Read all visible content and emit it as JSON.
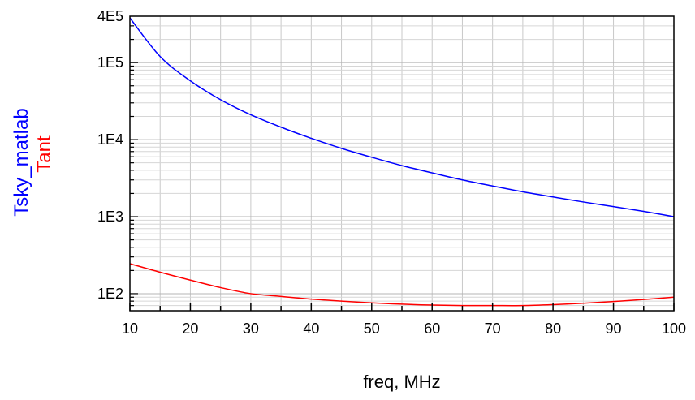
{
  "chart_data": {
    "type": "line",
    "xlabel": "freq, MHz",
    "xlim": [
      10,
      100
    ],
    "x_scale": "linear",
    "y_scale": "log",
    "ylim": [
      60,
      400000
    ],
    "grid": true,
    "x_ticks": [
      10,
      20,
      30,
      40,
      50,
      60,
      70,
      80,
      90,
      100
    ],
    "x_tick_labels": [
      "10",
      "20",
      "30",
      "40",
      "50",
      "60",
      "70",
      "80",
      "90",
      "100"
    ],
    "y_ticks": [
      100,
      1000,
      10000,
      100000,
      400000
    ],
    "y_tick_labels": [
      "1E2",
      "1E3",
      "1E4",
      "1E5",
      "4E5"
    ],
    "x": [
      10,
      15,
      20,
      25,
      30,
      35,
      40,
      45,
      50,
      55,
      60,
      65,
      70,
      75,
      80,
      85,
      90,
      95,
      100
    ],
    "series": [
      {
        "name": "Tsky_matlab",
        "color": "#0000ff",
        "values": [
          380000,
          120000,
          58000,
          33000,
          21000,
          14500,
          10400,
          7700,
          5900,
          4600,
          3700,
          3000,
          2500,
          2100,
          1800,
          1550,
          1350,
          1170,
          1000
        ]
      },
      {
        "name": "Tant",
        "color": "#ff0000",
        "values": [
          245,
          190,
          150,
          120,
          100,
          92,
          85,
          80,
          76,
          73,
          71,
          70,
          70,
          70,
          72,
          75,
          79,
          84,
          90
        ]
      }
    ]
  }
}
